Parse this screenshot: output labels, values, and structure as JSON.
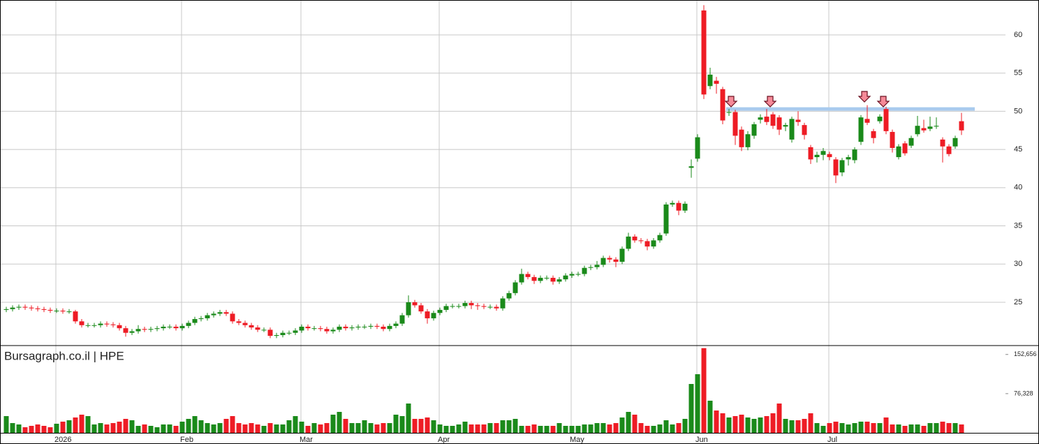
{
  "chart_data": {
    "type": "candlestick",
    "title": "Bursagraph.co.il | HPE",
    "categories": [
      null,
      null,
      null,
      null,
      null,
      null,
      null,
      null,
      "2026",
      null,
      null,
      null,
      null,
      null,
      null,
      null,
      null,
      null,
      null,
      null,
      null,
      null,
      null,
      null,
      null,
      null,
      null,
      null,
      "Feb",
      null,
      null,
      null,
      null,
      null,
      null,
      null,
      null,
      null,
      null,
      null,
      null,
      null,
      null,
      null,
      null,
      null,
      null,
      "Mar",
      null,
      null,
      null,
      null,
      null,
      null,
      null,
      null,
      null,
      null,
      null,
      null,
      null,
      null,
      null,
      null,
      null,
      null,
      null,
      null,
      null,
      "Apr",
      null,
      null,
      null,
      null,
      null,
      null,
      null,
      null,
      null,
      null,
      null,
      null,
      null,
      null,
      null,
      null,
      null,
      null,
      null,
      null,
      "May",
      null,
      null,
      null,
      null,
      null,
      null,
      null,
      null,
      null,
      null,
      null,
      null,
      null,
      null,
      null,
      null,
      null,
      null,
      null,
      "Jun",
      null,
      null,
      null,
      null,
      null,
      null,
      null,
      null,
      null,
      null,
      null,
      null,
      null,
      null,
      null,
      null,
      null,
      null,
      null,
      null,
      "Jul",
      null,
      null,
      null,
      null,
      null,
      null,
      null,
      null,
      null,
      null,
      null,
      null,
      null,
      null,
      null,
      null,
      null,
      null,
      null,
      null,
      null
    ],
    "open": [
      24.0,
      24.1,
      24.3,
      24.4,
      24.3,
      24.2,
      24.1,
      24.0,
      23.9,
      23.9,
      23.8,
      23.8,
      22.5,
      22.0,
      22.0,
      22.0,
      22.2,
      22.1,
      22.0,
      21.6,
      21.0,
      21.2,
      21.5,
      21.4,
      21.5,
      21.6,
      21.8,
      21.8,
      21.6,
      21.9,
      22.3,
      22.8,
      22.9,
      23.3,
      23.5,
      23.7,
      23.5,
      22.5,
      22.3,
      22.0,
      21.7,
      21.4,
      21.4,
      20.6,
      20.7,
      21.0,
      21.0,
      21.3,
      21.8,
      21.6,
      21.6,
      21.5,
      21.2,
      21.4,
      21.8,
      21.6,
      21.7,
      21.8,
      21.8,
      21.9,
      21.8,
      21.5,
      21.9,
      22.2,
      23.3,
      25.0,
      24.6,
      23.8,
      22.9,
      23.6,
      24.0,
      24.5,
      24.5,
      24.5,
      24.9,
      24.6,
      24.5,
      24.4,
      24.4,
      24.2,
      25.5,
      26.2,
      27.6,
      28.7,
      28.3,
      27.8,
      28.2,
      28.2,
      27.7,
      28.0,
      28.5,
      28.7,
      28.7,
      29.5,
      29.6,
      29.9,
      30.8,
      30.6,
      30.3,
      32.0,
      33.6,
      33.1,
      33.0,
      32.3,
      33.1,
      34.0,
      37.8,
      38.0,
      37.0,
      42.6,
      43.8,
      63.2,
      53.3,
      54.0,
      52.9,
      49.8,
      49.9,
      47.6,
      45.3,
      46.8,
      48.9,
      49.3,
      49.6,
      49.2,
      48.0,
      46.3,
      48.9,
      48.2,
      45.3,
      44.0,
      44.3,
      44.4,
      43.7,
      42.0,
      43.7,
      43.6,
      46.0,
      49.0,
      47.4,
      48.7,
      50.3,
      47.3,
      44.0,
      45.8,
      45.5,
      47.0,
      47.8,
      47.7,
      48.0,
      46.3,
      45.4,
      45.4,
      48.7
    ],
    "high": [
      24.4,
      24.6,
      24.7,
      24.7,
      24.6,
      24.5,
      24.4,
      24.3,
      24.2,
      24.2,
      24.1,
      24.0,
      22.8,
      22.3,
      22.3,
      22.5,
      22.5,
      22.4,
      22.3,
      21.9,
      21.5,
      22.0,
      21.8,
      21.8,
      21.9,
      22.1,
      22.1,
      22.1,
      22.2,
      22.6,
      23.1,
      23.2,
      23.6,
      23.8,
      24.0,
      24.0,
      23.8,
      22.8,
      22.6,
      22.3,
      22.0,
      21.7,
      21.7,
      21.0,
      21.3,
      21.3,
      21.6,
      22.1,
      22.1,
      21.9,
      21.9,
      21.8,
      21.7,
      22.1,
      22.1,
      22.0,
      22.1,
      22.1,
      22.2,
      22.2,
      22.1,
      22.2,
      22.5,
      23.6,
      25.9,
      25.3,
      24.9,
      24.1,
      23.9,
      24.3,
      24.8,
      24.8,
      24.8,
      25.2,
      25.2,
      24.9,
      24.8,
      24.7,
      24.7,
      25.8,
      26.5,
      27.9,
      29.4,
      29.0,
      28.6,
      28.5,
      28.5,
      28.5,
      28.3,
      28.8,
      29.0,
      29.0,
      29.8,
      29.9,
      30.4,
      31.1,
      31.1,
      30.9,
      32.3,
      34.1,
      33.9,
      33.4,
      33.3,
      33.4,
      34.1,
      38.1,
      38.3,
      38.3,
      38.2,
      43.7,
      47.0,
      63.9,
      55.7,
      54.5,
      53.2,
      50.3,
      50.2,
      48.0,
      47.4,
      48.6,
      49.6,
      50.3,
      49.9,
      49.5,
      48.5,
      49.3,
      50.0,
      48.5,
      45.6,
      44.7,
      45.2,
      44.7,
      44.0,
      43.9,
      44.3,
      45.3,
      49.5,
      50.8,
      47.7,
      49.6,
      50.6,
      47.6,
      45.7,
      46.1,
      46.8,
      49.4,
      48.9,
      49.3,
      49.2,
      46.6,
      45.7,
      46.8,
      49.8
    ],
    "low": [
      23.7,
      23.8,
      24.0,
      24.0,
      23.9,
      23.8,
      23.7,
      23.6,
      23.6,
      23.5,
      23.5,
      22.2,
      21.7,
      21.7,
      21.7,
      21.7,
      21.8,
      21.7,
      21.3,
      20.5,
      20.7,
      20.9,
      21.1,
      21.1,
      21.2,
      21.3,
      21.5,
      21.3,
      21.3,
      21.6,
      22.0,
      22.5,
      22.6,
      23.0,
      23.2,
      23.2,
      22.2,
      22.0,
      21.7,
      21.4,
      21.1,
      21.1,
      20.3,
      20.3,
      20.4,
      20.7,
      20.7,
      21.0,
      21.3,
      21.3,
      21.2,
      20.9,
      20.9,
      21.1,
      21.3,
      21.3,
      21.4,
      21.5,
      21.5,
      21.5,
      21.2,
      21.2,
      21.6,
      21.9,
      23.0,
      24.3,
      23.5,
      22.2,
      22.6,
      23.3,
      23.7,
      24.2,
      24.2,
      24.2,
      24.1,
      24.0,
      24.1,
      24.1,
      23.9,
      23.9,
      25.2,
      25.9,
      27.3,
      28.0,
      27.4,
      27.5,
      27.9,
      27.3,
      27.4,
      27.7,
      28.2,
      28.4,
      28.4,
      29.2,
      29.3,
      29.6,
      30.2,
      29.6,
      30.0,
      31.7,
      32.8,
      32.7,
      31.8,
      32.0,
      32.8,
      33.7,
      37.5,
      36.4,
      36.7,
      41.3,
      43.4,
      51.6,
      52.9,
      52.3,
      48.3,
      49.4,
      45.6,
      44.8,
      44.9,
      46.4,
      48.4,
      48.2,
      47.7,
      46.9,
      47.4,
      45.9,
      48.1,
      46.3,
      43.1,
      43.3,
      43.6,
      43.6,
      40.6,
      41.5,
      42.9,
      43.2,
      45.6,
      48.2,
      45.8,
      48.4,
      47.0,
      44.6,
      43.7,
      44.2,
      45.2,
      46.7,
      47.2,
      47.4,
      47.7,
      43.3,
      44.1,
      45.1,
      46.9
    ],
    "close": [
      24.1,
      24.3,
      24.4,
      24.3,
      24.2,
      24.1,
      24.0,
      23.9,
      23.9,
      23.8,
      23.8,
      22.5,
      22.0,
      22.0,
      22.0,
      22.2,
      22.1,
      22.0,
      21.6,
      21.0,
      21.2,
      21.5,
      21.4,
      21.5,
      21.6,
      21.8,
      21.8,
      21.6,
      21.9,
      22.3,
      22.8,
      22.9,
      23.3,
      23.5,
      23.7,
      23.5,
      22.5,
      22.3,
      22.0,
      21.7,
      21.4,
      21.4,
      20.6,
      20.7,
      21.0,
      21.0,
      21.3,
      21.8,
      21.6,
      21.6,
      21.5,
      21.2,
      21.4,
      21.8,
      21.6,
      21.7,
      21.8,
      21.8,
      21.9,
      21.8,
      21.5,
      21.9,
      22.2,
      23.3,
      25.0,
      24.6,
      23.8,
      22.9,
      23.6,
      24.0,
      24.5,
      24.5,
      24.5,
      24.9,
      24.6,
      24.5,
      24.4,
      24.4,
      24.2,
      25.5,
      26.2,
      27.6,
      28.7,
      28.3,
      27.8,
      28.2,
      28.2,
      27.7,
      28.0,
      28.5,
      28.7,
      28.7,
      29.5,
      29.6,
      29.9,
      30.8,
      30.6,
      30.3,
      32.0,
      33.6,
      33.1,
      33.0,
      32.3,
      33.1,
      33.8,
      37.8,
      38.0,
      37.0,
      37.9,
      42.8,
      46.6,
      52.2,
      54.8,
      53.6,
      48.8,
      49.9,
      46.8,
      45.3,
      47.0,
      48.3,
      49.2,
      48.6,
      48.1,
      47.6,
      48.2,
      49.0,
      48.6,
      46.9,
      43.7,
      44.3,
      44.8,
      44.0,
      41.6,
      43.6,
      44.0,
      45.0,
      49.2,
      48.5,
      46.5,
      49.3,
      47.4,
      45.2,
      45.4,
      44.5,
      46.5,
      48.1,
      47.5,
      48.0,
      48.1,
      45.4,
      44.4,
      46.5,
      47.5
    ],
    "colors": {
      "up": "#1a8a1a",
      "down": "#ee1c25"
    },
    "ylim": [
      19.33,
      64.57
    ],
    "yticks": [
      25,
      30,
      35,
      40,
      45,
      50,
      55,
      60
    ],
    "grid": true,
    "resistance": 50.3,
    "resistance_color": "#a9cbee",
    "volume": {
      "values": [
        32600,
        19000,
        16300,
        10900,
        13600,
        16300,
        13600,
        10900,
        17700,
        21800,
        24500,
        29900,
        35400,
        32600,
        16300,
        19000,
        16300,
        19000,
        21800,
        27200,
        24500,
        13600,
        16300,
        13600,
        10900,
        16300,
        16300,
        13600,
        21800,
        27200,
        32600,
        24500,
        19000,
        16300,
        19000,
        27200,
        32600,
        19000,
        16300,
        19000,
        16300,
        13600,
        19000,
        16300,
        16300,
        24500,
        32600,
        21800,
        13600,
        19000,
        16300,
        19000,
        35400,
        40800,
        27200,
        19000,
        19000,
        24500,
        19000,
        16300,
        19000,
        19000,
        35400,
        32600,
        57100,
        27200,
        27200,
        29900,
        24500,
        16300,
        13600,
        13600,
        16300,
        21800,
        16300,
        16300,
        16300,
        19000,
        19000,
        24500,
        24500,
        27200,
        13600,
        13600,
        16300,
        13600,
        13600,
        13600,
        19000,
        13600,
        13600,
        13600,
        16300,
        16300,
        19000,
        19000,
        16300,
        19000,
        29900,
        40800,
        35400,
        19000,
        13600,
        13600,
        16300,
        24500,
        16300,
        19000,
        27200,
        95200,
        114200,
        165000,
        62600,
        43500,
        38100,
        29900,
        32600,
        35400,
        29900,
        27200,
        29900,
        32600,
        38100,
        57100,
        27200,
        24500,
        24500,
        27200,
        38100,
        19000,
        13600,
        19000,
        21800,
        19000,
        16300,
        19000,
        21800,
        21800,
        19000,
        19000,
        29900,
        16300,
        16300,
        13600,
        16300,
        16300,
        13600,
        19000,
        19000,
        21800,
        19000,
        19000,
        16300
      ],
      "ylim": [
        0,
        170000
      ],
      "yticks": [
        {
          "value": 76328,
          "label": "76,328"
        },
        {
          "value": 152656,
          "label": "152,656"
        }
      ]
    }
  }
}
